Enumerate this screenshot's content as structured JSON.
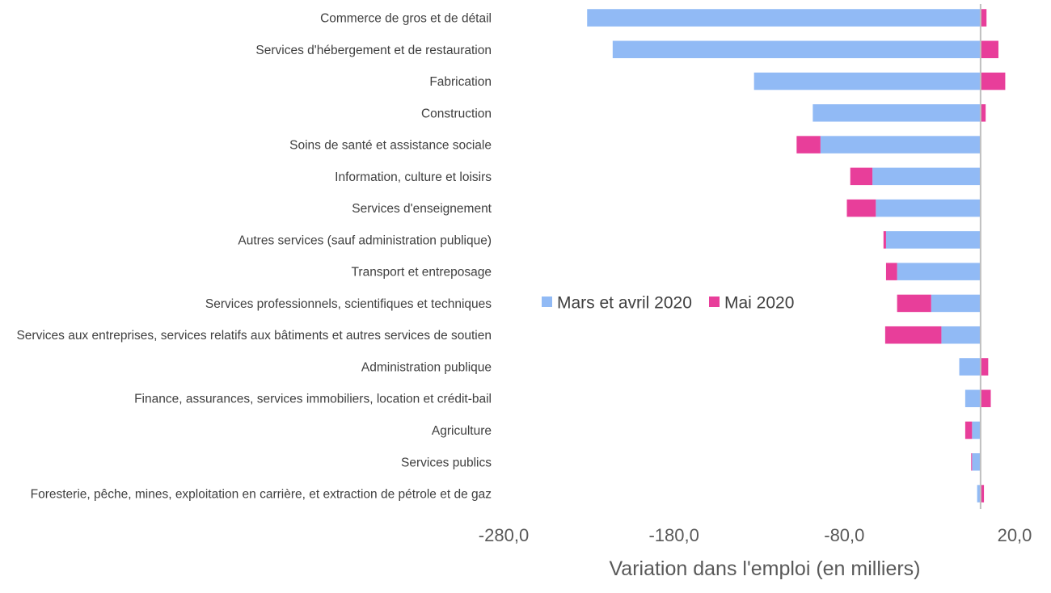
{
  "chart_data": {
    "type": "bar",
    "orientation": "horizontal",
    "stacked": "diverging",
    "xlabel": "Variation dans l'emploi (en milliers)",
    "xlim": [
      -280,
      20
    ],
    "xticks": [
      "-280,0",
      "-180,0",
      "-80,0",
      "20,0"
    ],
    "xtick_values": [
      -280,
      -180,
      -80,
      20
    ],
    "grid": false,
    "legend_position": "center",
    "categories": [
      "Commerce de gros et de détail",
      "Services d'hébergement et de restauration",
      "Fabrication",
      "Construction",
      "Soins de santé et assistance sociale",
      "Information, culture et loisirs",
      "Services d'enseignement",
      "Autres services (sauf administration publique)",
      "Transport et entreposage",
      "Services professionnels, scientifiques et techniques",
      "Services aux entreprises, services relatifs aux bâtiments et autres services de soutien",
      "Administration publique",
      "Finance, assurances, services immobiliers, location et crédit-bail",
      "Agriculture",
      "Services publics",
      "Foresterie, pêche, mines, exploitation en carrière, et extraction de pétrole et de gaz"
    ],
    "series": [
      {
        "name": "Mars et avril 2020",
        "color": "#91baf5",
        "values": [
          -231,
          -216,
          -133,
          -98.5,
          -94,
          -63.5,
          -61.5,
          -55.5,
          -49,
          -29,
          -23,
          -12.5,
          -9,
          -5,
          -5,
          -2
        ]
      },
      {
        "name": "Mai 2020",
        "color": "#e83e9a",
        "values": [
          3.5,
          10.5,
          14.5,
          3,
          -14,
          -13,
          -17,
          -1.5,
          -6.5,
          -20,
          -33,
          4.5,
          6,
          -4,
          -0.5,
          2
        ]
      }
    ]
  }
}
